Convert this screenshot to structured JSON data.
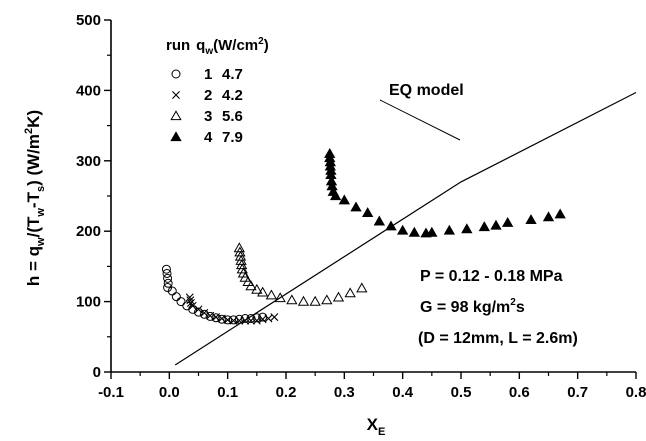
{
  "chart_data": {
    "type": "scatter",
    "title": "",
    "xlabel": "X",
    "xlabel_sub": "E",
    "ylabel_parts": {
      "a": "h = q",
      "a_sub": "w",
      "b": "/(T",
      "b_sub": "w",
      "c": "-T",
      "c_sub": "s",
      "d": ") (W/m",
      "d_sup": "2",
      "e": "K)"
    },
    "xlim": [
      -0.1,
      0.8
    ],
    "ylim": [
      0,
      500
    ],
    "x_ticks": [
      "-0.1",
      "0.0",
      "0.1",
      "0.2",
      "0.3",
      "0.4",
      "0.5",
      "0.6",
      "0.7",
      "0.8"
    ],
    "x_tick_values": [
      -0.1,
      0.0,
      0.1,
      0.2,
      0.3,
      0.4,
      0.5,
      0.6,
      0.7,
      0.8
    ],
    "y_ticks": [
      "0",
      "100",
      "200",
      "300",
      "400",
      "500"
    ],
    "y_tick_values": [
      0,
      100,
      200,
      300,
      400,
      500
    ],
    "grid": false,
    "legend": {
      "placement": "top-left",
      "header": {
        "run": "run",
        "q": "q",
        "q_sub": "w",
        "unit": "(W/cm",
        "unit_sup": "2",
        "unit_end": ")"
      },
      "entries": [
        {
          "run": "1",
          "value": "4.7",
          "marker": "circle"
        },
        {
          "run": "2",
          "value": "4.2",
          "marker": "cross"
        },
        {
          "run": "3",
          "value": "5.6",
          "marker": "triangle-open"
        },
        {
          "run": "4",
          "value": "7.9",
          "marker": "triangle-filled"
        }
      ]
    },
    "series": [
      {
        "marker": "circle",
        "points": [
          [
            -0.005,
            146
          ],
          [
            -0.004,
            140
          ],
          [
            -0.003,
            133
          ],
          [
            -0.002,
            126
          ],
          [
            -0.003,
            120
          ],
          [
            0.005,
            115
          ],
          [
            0.012,
            107
          ],
          [
            0.02,
            100
          ],
          [
            0.03,
            94
          ],
          [
            0.04,
            89
          ],
          [
            0.05,
            85
          ],
          [
            0.06,
            82
          ],
          [
            0.07,
            79
          ],
          [
            0.08,
            77
          ],
          [
            0.09,
            75
          ],
          [
            0.1,
            74
          ],
          [
            0.11,
            74
          ],
          [
            0.12,
            75
          ],
          [
            0.13,
            76
          ],
          [
            0.14,
            76
          ],
          [
            0.15,
            77
          ],
          [
            0.16,
            78
          ]
        ]
      },
      {
        "marker": "cross",
        "points": [
          [
            0.035,
            106
          ],
          [
            0.036,
            102
          ],
          [
            0.037,
            98
          ],
          [
            0.04,
            94
          ],
          [
            0.05,
            89
          ],
          [
            0.06,
            84
          ],
          [
            0.07,
            80
          ],
          [
            0.08,
            78
          ],
          [
            0.09,
            76
          ],
          [
            0.1,
            74
          ],
          [
            0.11,
            73
          ],
          [
            0.12,
            73
          ],
          [
            0.13,
            73
          ],
          [
            0.14,
            73
          ],
          [
            0.15,
            73
          ],
          [
            0.16,
            75
          ],
          [
            0.17,
            76
          ],
          [
            0.18,
            78
          ]
        ]
      },
      {
        "marker": "triangle-open",
        "points": [
          [
            0.12,
            176
          ],
          [
            0.121,
            170
          ],
          [
            0.122,
            164
          ],
          [
            0.123,
            158
          ],
          [
            0.124,
            152
          ],
          [
            0.125,
            146
          ],
          [
            0.127,
            140
          ],
          [
            0.13,
            134
          ],
          [
            0.135,
            128
          ],
          [
            0.14,
            122
          ],
          [
            0.15,
            117
          ],
          [
            0.16,
            113
          ],
          [
            0.175,
            109
          ],
          [
            0.19,
            105
          ],
          [
            0.21,
            102
          ],
          [
            0.23,
            100
          ],
          [
            0.25,
            100
          ],
          [
            0.27,
            102
          ],
          [
            0.29,
            106
          ],
          [
            0.31,
            112
          ],
          [
            0.33,
            119
          ]
        ]
      },
      {
        "marker": "triangle-filled",
        "points": [
          [
            0.275,
            310
          ],
          [
            0.275,
            304
          ],
          [
            0.276,
            298
          ],
          [
            0.276,
            292
          ],
          [
            0.277,
            286
          ],
          [
            0.277,
            280
          ],
          [
            0.278,
            271
          ],
          [
            0.279,
            264
          ],
          [
            0.281,
            256
          ],
          [
            0.285,
            250
          ],
          [
            0.3,
            244
          ],
          [
            0.32,
            234
          ],
          [
            0.34,
            226
          ],
          [
            0.36,
            214
          ],
          [
            0.38,
            207
          ],
          [
            0.4,
            201
          ],
          [
            0.42,
            198
          ],
          [
            0.44,
            197
          ],
          [
            0.45,
            198
          ],
          [
            0.48,
            201
          ],
          [
            0.51,
            203
          ],
          [
            0.54,
            206
          ],
          [
            0.56,
            208
          ],
          [
            0.58,
            212
          ],
          [
            0.62,
            216
          ],
          [
            0.65,
            220
          ],
          [
            0.67,
            224
          ]
        ]
      }
    ],
    "model_line": {
      "name": "EQ model",
      "points": [
        [
          0.01,
          10
        ],
        [
          0.5,
          270
        ],
        [
          0.8,
          397
        ]
      ]
    },
    "annotations": {
      "model_label": "EQ model",
      "pressure": "P = 0.12 - 0.18 MPa",
      "flux_prefix": "G = 98 kg/m",
      "flux_sup": "2",
      "flux_suffix": "s",
      "geometry": "(D = 12mm, L = 2.6m)"
    }
  }
}
